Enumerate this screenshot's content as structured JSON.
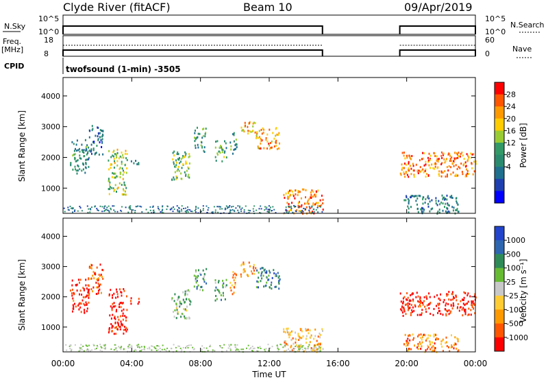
{
  "header": {
    "station": "Clyde River (fitACF)",
    "beam": "Beam 10",
    "date": "09/Apr/2019"
  },
  "strips": {
    "nsky_label": "N.Sky",
    "nsky_ticks": [
      "10^5",
      "10^0"
    ],
    "nsearch_label": "N.Search",
    "nsearch_ticks": [
      "10^5",
      "10^0"
    ],
    "freq_label": "Freq.",
    "freq_unit": "[MHz]",
    "freq_ticks": [
      "18",
      "8"
    ],
    "nave_label": "Nave",
    "nave_ticks": [
      "60",
      "0"
    ],
    "cpid_label": "CPID",
    "cpid_value": "twofsound (1-min) -3505",
    "data_coverage_hours": [
      [
        0.0,
        15.1
      ],
      [
        19.6,
        24.0
      ]
    ]
  },
  "time_axis": {
    "label": "Time UT",
    "ticks": [
      "00:00",
      "04:00",
      "08:00",
      "12:00",
      "16:00",
      "20:00",
      "00:00"
    ],
    "range_hours": [
      0,
      24
    ]
  },
  "range_axis": {
    "label": "Slant Range [km]",
    "ticks": [
      "4000",
      "3000",
      "2000",
      "1000"
    ],
    "range_km": [
      180,
      4600
    ]
  },
  "power_colorbar": {
    "label": "Power [dB]",
    "ticks": [
      "28",
      "24",
      "20",
      "16",
      "12",
      "8",
      "4"
    ],
    "colors": [
      "#ff0000",
      "#ff5500",
      "#ff9900",
      "#ffcc00",
      "#99cc33",
      "#339966",
      "#2a8a6e",
      "#1f6f8f",
      "#1e3fb0",
      "#0000ff"
    ]
  },
  "velocity_colorbar": {
    "label": "Velocity [m s⁻¹]",
    "ticks": [
      "1000",
      "500",
      "100",
      "25",
      "-25",
      "-100",
      "-500",
      "-1000"
    ],
    "colors": [
      "#2244cc",
      "#2e66b0",
      "#2e8b57",
      "#66bb33",
      "#c8c8c8",
      "#ffcc33",
      "#ff9900",
      "#ff5500",
      "#ff0000"
    ]
  },
  "chart_data": [
    {
      "type": "heatmap",
      "title": "Power",
      "xlabel": "Time UT",
      "ylabel": "Slant Range [km]",
      "x_range_hours": [
        0,
        24
      ],
      "y_range_km": [
        180,
        4600
      ],
      "echo_regions": [
        {
          "t": [
            0.4,
            1.5
          ],
          "r": [
            1500,
            2600
          ],
          "level": 0.35
        },
        {
          "t": [
            1.4,
            2.3
          ],
          "r": [
            2100,
            3100
          ],
          "level": 0.25
        },
        {
          "t": [
            2.6,
            3.7
          ],
          "r": [
            800,
            2300
          ],
          "level": 0.55
        },
        {
          "t": [
            3.9,
            4.4
          ],
          "r": [
            1800,
            2000
          ],
          "level": 0.3
        },
        {
          "t": [
            6.3,
            7.4
          ],
          "r": [
            1300,
            2300
          ],
          "level": 0.5
        },
        {
          "t": [
            7.6,
            8.3
          ],
          "r": [
            2200,
            3000
          ],
          "level": 0.4
        },
        {
          "t": [
            8.8,
            9.5
          ],
          "r": [
            1900,
            2600
          ],
          "level": 0.45
        },
        {
          "t": [
            9.7,
            10.1
          ],
          "r": [
            2100,
            2900
          ],
          "level": 0.4
        },
        {
          "t": [
            10.3,
            11.2
          ],
          "r": [
            2700,
            3200
          ],
          "level": 0.7
        },
        {
          "t": [
            11.2,
            12.6
          ],
          "r": [
            2300,
            3000
          ],
          "level": 0.75
        },
        {
          "t": [
            12.8,
            15.1
          ],
          "r": [
            200,
            1000
          ],
          "level": 0.8
        },
        {
          "t": [
            19.6,
            24.0
          ],
          "r": [
            1400,
            2200
          ],
          "level": 0.8
        },
        {
          "t": [
            19.8,
            23.0
          ],
          "r": [
            200,
            800
          ],
          "level": 0.3
        }
      ]
    },
    {
      "type": "heatmap",
      "title": "Velocity",
      "xlabel": "Time UT",
      "ylabel": "Slant Range [km]",
      "x_range_hours": [
        0,
        24
      ],
      "y_range_km": [
        180,
        4600
      ],
      "echo_regions": [
        {
          "t": [
            0.4,
            1.5
          ],
          "r": [
            1500,
            2600
          ],
          "level": 0.05
        },
        {
          "t": [
            1.4,
            2.3
          ],
          "r": [
            2100,
            3100
          ],
          "level": 0.15
        },
        {
          "t": [
            2.6,
            3.7
          ],
          "r": [
            800,
            2300
          ],
          "level": 0.05
        },
        {
          "t": [
            3.9,
            4.4
          ],
          "r": [
            1800,
            2000
          ],
          "level": 0.05
        },
        {
          "t": [
            6.3,
            7.4
          ],
          "r": [
            1300,
            2300
          ],
          "level": 0.6
        },
        {
          "t": [
            7.6,
            8.3
          ],
          "r": [
            2200,
            3000
          ],
          "level": 0.65
        },
        {
          "t": [
            8.8,
            9.5
          ],
          "r": [
            1900,
            2600
          ],
          "level": 0.7
        },
        {
          "t": [
            9.7,
            10.1
          ],
          "r": [
            2100,
            2900
          ],
          "level": 0.3
        },
        {
          "t": [
            10.3,
            11.2
          ],
          "r": [
            2700,
            3200
          ],
          "level": 0.3
        },
        {
          "t": [
            11.2,
            12.6
          ],
          "r": [
            2300,
            3000
          ],
          "level": 0.75
        },
        {
          "t": [
            12.8,
            15.1
          ],
          "r": [
            200,
            1000
          ],
          "level": 0.35
        },
        {
          "t": [
            19.6,
            24.0
          ],
          "r": [
            1400,
            2200
          ],
          "level": 0.05
        },
        {
          "t": [
            19.8,
            23.0
          ],
          "r": [
            200,
            800
          ],
          "level": 0.25
        }
      ]
    }
  ]
}
